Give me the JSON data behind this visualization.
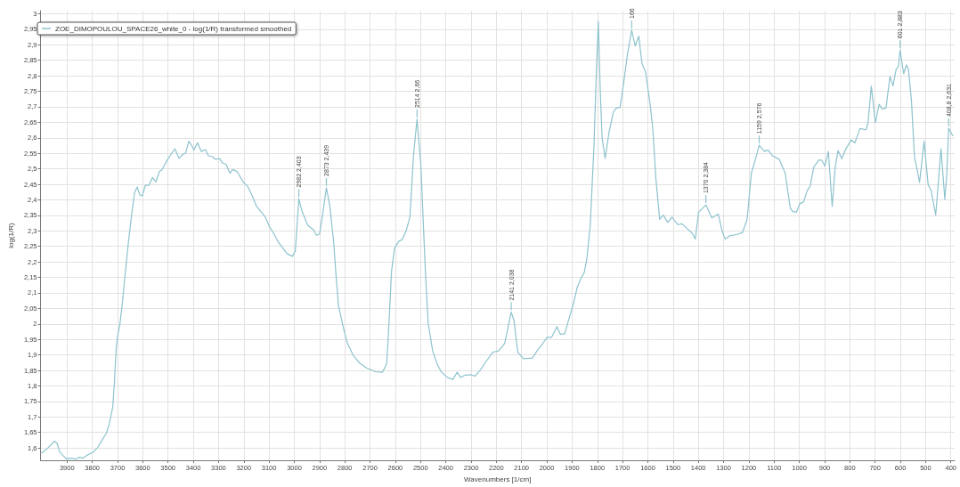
{
  "chart_data": {
    "type": "line",
    "xlabel": "Wavenumbers [1/cm]",
    "ylabel": "log(1/R)",
    "xlim": [
      4005,
      385
    ],
    "xticks": [
      3900,
      3800,
      3700,
      3600,
      3500,
      3400,
      3300,
      3200,
      3100,
      3000,
      2900,
      2800,
      2700,
      2600,
      2500,
      2400,
      2300,
      2200,
      2100,
      2000,
      1900,
      1800,
      1700,
      1600,
      1500,
      1400,
      1300,
      1200,
      1100,
      1000,
      900,
      800,
      700,
      600,
      500,
      400
    ],
    "ylim": [
      1.56,
      3.01
    ],
    "yticks": [
      {
        "value": 1.6,
        "label": "1,6"
      },
      {
        "value": 1.65,
        "label": "1,65"
      },
      {
        "value": 1.7,
        "label": "1,7"
      },
      {
        "value": 1.75,
        "label": "1,75"
      },
      {
        "value": 1.8,
        "label": "1,8"
      },
      {
        "value": 1.85,
        "label": "1,85"
      },
      {
        "value": 1.9,
        "label": "1,9"
      },
      {
        "value": 1.95,
        "label": "1,95"
      },
      2,
      {
        "value": 2.05,
        "label": "2,05"
      },
      {
        "value": 2.1,
        "label": "2,1"
      },
      {
        "value": 2.15,
        "label": "2,15"
      },
      {
        "value": 2.2,
        "label": "2,2"
      },
      {
        "value": 2.25,
        "label": "2,25"
      },
      {
        "value": 2.3,
        "label": "2,3"
      },
      {
        "value": 2.35,
        "label": "2,35"
      },
      {
        "value": 2.4,
        "label": "2,4"
      },
      {
        "value": 2.45,
        "label": "2,45"
      },
      {
        "value": 2.5,
        "label": "2,5"
      },
      {
        "value": 2.55,
        "label": "2,55"
      },
      {
        "value": 2.6,
        "label": "2,6"
      },
      {
        "value": 2.65,
        "label": "2,65"
      },
      {
        "value": 2.7,
        "label": "2,7"
      },
      {
        "value": 2.75,
        "label": "2,75"
      },
      {
        "value": 2.8,
        "label": "2,8"
      },
      {
        "value": 2.85,
        "label": "2,85"
      },
      {
        "value": 2.9,
        "label": "2,9"
      },
      {
        "value": 2.95,
        "label": "2,95"
      },
      3
    ],
    "grid": true,
    "legend": "top left",
    "line_style": "solid",
    "series": [
      {
        "name": "ZOE_DIMOPOULOU_SPACE26_white_0 - log(1/R) transformed smoothed",
        "color": "#8dc3cd",
        "x": [
          4000,
          3978,
          3950,
          3939,
          3929,
          3915,
          3901,
          3883,
          3866,
          3852,
          3838,
          3824,
          3810,
          3796,
          3779,
          3761,
          3744,
          3733,
          3719,
          3712,
          3705,
          3698,
          3691,
          3681,
          3671,
          3657,
          3643,
          3632,
          3622,
          3612,
          3601,
          3590,
          3576,
          3562,
          3548,
          3534,
          3524,
          3507,
          3488,
          3473,
          3457,
          3441,
          3430,
          3418,
          3406,
          3398,
          3383,
          3368,
          3352,
          3340,
          3325,
          3313,
          3296,
          3284,
          3270,
          3255,
          3244,
          3226,
          3203,
          3185,
          3168,
          3150,
          3133,
          3116,
          3098,
          3081,
          3063,
          3028,
          3007,
          2996,
          2982,
          2970,
          2947,
          2924,
          2912,
          2900,
          2889,
          2873,
          2860,
          2844,
          2836,
          2825,
          2807,
          2791,
          2767,
          2742,
          2714,
          2679,
          2651,
          2634,
          2625,
          2615,
          2603,
          2586,
          2574,
          2557,
          2542,
          2528,
          2514,
          2499,
          2481,
          2470,
          2452,
          2435,
          2417,
          2393,
          2372,
          2355,
          2341,
          2323,
          2301,
          2284,
          2260,
          2243,
          2214,
          2191,
          2167,
          2141,
          2130,
          2115,
          2092,
          2057,
          2039,
          2016,
          1999,
          1981,
          1960,
          1946,
          1929,
          1911,
          1894,
          1880,
          1866,
          1852,
          1842,
          1828,
          1813,
          1804,
          1796,
          1789,
          1781,
          1769,
          1754,
          1737,
          1725,
          1710,
          1696,
          1681,
          1664,
          1650,
          1636,
          1623,
          1609,
          1591,
          1580,
          1568,
          1553,
          1539,
          1521,
          1504,
          1481,
          1464,
          1440,
          1423,
          1412,
          1399,
          1370,
          1347,
          1321,
          1306,
          1294,
          1273,
          1248,
          1225,
          1207,
          1190,
          1178,
          1159,
          1138,
          1124,
          1106,
          1080,
          1056,
          1036,
          1027,
          1012,
          998,
          983,
          969,
          957,
          943,
          923,
          911,
          899,
          885,
          870,
          858,
          847,
          832,
          818,
          795,
          780,
          760,
          736,
          728,
          715,
          699,
          684,
          672,
          657,
          641,
          629,
          617,
          608,
          601,
          587,
          576,
          568,
          556,
          544,
          533,
          524,
          506,
          490,
          478,
          460,
          439,
          424,
          416,
          408.8,
          393
        ],
        "values": [
          1.584,
          1.598,
          1.622,
          1.615,
          1.587,
          1.575,
          1.564,
          1.567,
          1.564,
          1.57,
          1.567,
          1.575,
          1.581,
          1.587,
          1.601,
          1.626,
          1.648,
          1.676,
          1.732,
          1.816,
          1.927,
          1.969,
          1.997,
          2.067,
          2.151,
          2.263,
          2.36,
          2.425,
          2.441,
          2.416,
          2.413,
          2.447,
          2.447,
          2.472,
          2.458,
          2.492,
          2.497,
          2.523,
          2.547,
          2.565,
          2.534,
          2.547,
          2.551,
          2.589,
          2.575,
          2.561,
          2.584,
          2.556,
          2.562,
          2.542,
          2.54,
          2.531,
          2.533,
          2.519,
          2.514,
          2.486,
          2.498,
          2.491,
          2.458,
          2.444,
          2.416,
          2.38,
          2.363,
          2.346,
          2.313,
          2.291,
          2.263,
          2.226,
          2.218,
          2.235,
          2.403,
          2.365,
          2.318,
          2.304,
          2.286,
          2.29,
          2.346,
          2.439,
          2.384,
          2.263,
          2.17,
          2.059,
          1.992,
          1.941,
          1.899,
          1.874,
          1.858,
          1.846,
          1.844,
          1.872,
          2.003,
          2.17,
          2.244,
          2.267,
          2.271,
          2.3,
          2.346,
          2.542,
          2.66,
          2.514,
          2.17,
          2.002,
          1.913,
          1.872,
          1.844,
          1.827,
          1.821,
          1.844,
          1.827,
          1.835,
          1.836,
          1.832,
          1.855,
          1.876,
          1.909,
          1.913,
          1.937,
          2.038,
          2.011,
          1.909,
          1.888,
          1.89,
          1.913,
          1.937,
          1.957,
          1.957,
          1.991,
          1.966,
          1.969,
          2.02,
          2.067,
          2.117,
          2.145,
          2.165,
          2.207,
          2.318,
          2.579,
          2.813,
          2.975,
          2.765,
          2.598,
          2.534,
          2.616,
          2.682,
          2.696,
          2.698,
          2.775,
          2.868,
          2.947,
          2.896,
          2.928,
          2.84,
          2.812,
          2.709,
          2.626,
          2.467,
          2.337,
          2.351,
          2.328,
          2.344,
          2.32,
          2.323,
          2.304,
          2.291,
          2.274,
          2.36,
          2.384,
          2.342,
          2.354,
          2.3,
          2.274,
          2.285,
          2.288,
          2.295,
          2.337,
          2.486,
          2.519,
          2.576,
          2.556,
          2.561,
          2.542,
          2.531,
          2.486,
          2.374,
          2.363,
          2.36,
          2.388,
          2.393,
          2.43,
          2.444,
          2.505,
          2.528,
          2.528,
          2.509,
          2.556,
          2.379,
          2.505,
          2.559,
          2.533,
          2.561,
          2.593,
          2.584,
          2.63,
          2.626,
          2.649,
          2.767,
          2.649,
          2.708,
          2.693,
          2.696,
          2.798,
          2.767,
          2.821,
          2.83,
          2.883,
          2.807,
          2.835,
          2.821,
          2.719,
          2.537,
          2.495,
          2.456,
          2.589,
          2.449,
          2.43,
          2.351,
          2.565,
          2.402,
          2.486,
          2.631,
          2.607
        ]
      }
    ],
    "annotations": [
      {
        "text": "2982 2,403",
        "x": 2982,
        "y": 2.403
      },
      {
        "text": "2873 2,439",
        "x": 2873,
        "y": 2.439
      },
      {
        "text": "2514 2,66",
        "x": 2514,
        "y": 2.66
      },
      {
        "text": "2141 2,038",
        "x": 2141,
        "y": 2.038
      },
      {
        "text": "166",
        "x": 1664,
        "y": 2.947
      },
      {
        "text": "1370 2,384",
        "x": 1370,
        "y": 2.384
      },
      {
        "text": "1159 2,576",
        "x": 1159,
        "y": 2.576
      },
      {
        "text": "601 2,883",
        "x": 601,
        "y": 2.883
      },
      {
        "text": "408,8 2,631",
        "x": 408.8,
        "y": 2.631
      }
    ]
  }
}
